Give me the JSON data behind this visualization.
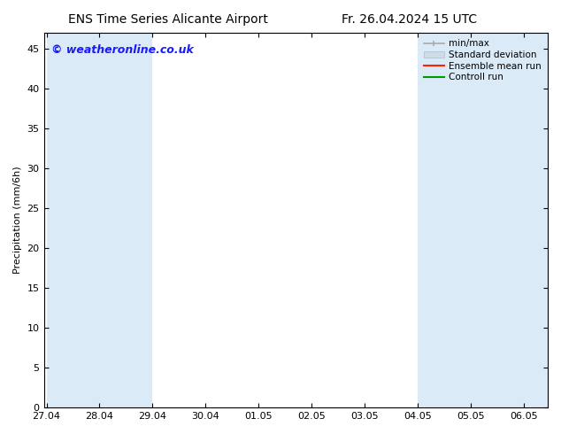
{
  "title_left": "ENS Time Series Alicante Airport",
  "title_right": "Fr. 26.04.2024 15 UTC",
  "ylabel": "Precipitation (mm/6h)",
  "watermark": "© weatheronline.co.uk",
  "watermark_color": "#1a1aff",
  "background_color": "#ffffff",
  "plot_bg_color": "#ffffff",
  "shaded_band_color": "#daeaf7",
  "ymin": 0,
  "ymax": 47,
  "yticks": [
    0,
    5,
    10,
    15,
    20,
    25,
    30,
    35,
    40,
    45
  ],
  "x_tick_labels": [
    "27.04",
    "28.04",
    "29.04",
    "30.04",
    "01.05",
    "02.05",
    "03.05",
    "04.05",
    "05.05",
    "06.05"
  ],
  "shaded_bands": [
    [
      0,
      1
    ],
    [
      1,
      2
    ],
    [
      7,
      8
    ],
    [
      8,
      9
    ],
    [
      9,
      9.45
    ]
  ],
  "legend_entries": [
    {
      "label": "min/max",
      "color": "#aaaaaa",
      "style": "minmax"
    },
    {
      "label": "Standard deviation",
      "color": "#ccddee",
      "style": "fill"
    },
    {
      "label": "Ensemble mean run",
      "color": "#ff2200",
      "style": "line"
    },
    {
      "label": "Controll run",
      "color": "#009900",
      "style": "line"
    }
  ],
  "title_fontsize": 10,
  "axis_label_fontsize": 8,
  "tick_fontsize": 8,
  "watermark_fontsize": 9,
  "xlim_min": -0.05,
  "xlim_max": 9.45
}
